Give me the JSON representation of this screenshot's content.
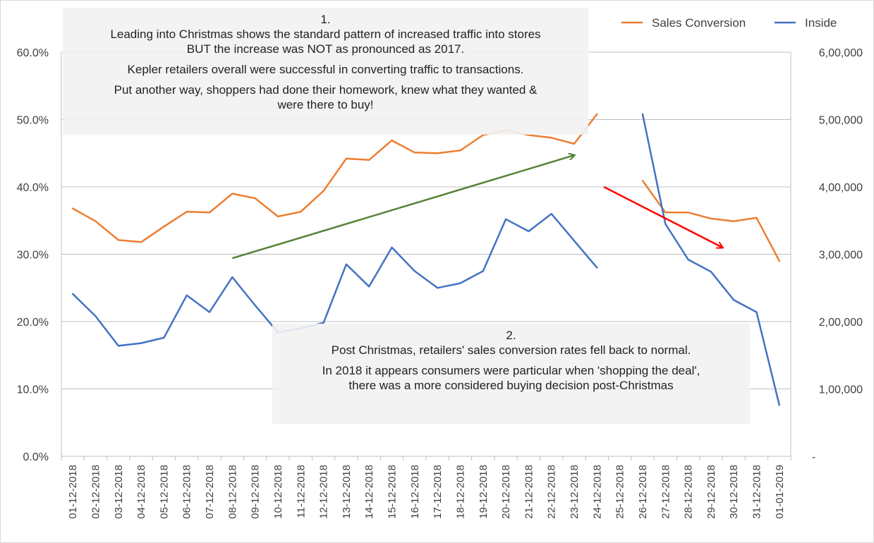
{
  "chart_data": {
    "type": "line",
    "categories": [
      "01-12-2018",
      "02-12-2018",
      "03-12-2018",
      "04-12-2018",
      "05-12-2018",
      "06-12-2018",
      "07-12-2018",
      "08-12-2018",
      "09-12-2018",
      "10-12-2018",
      "11-12-2018",
      "12-12-2018",
      "13-12-2018",
      "14-12-2018",
      "15-12-2018",
      "16-12-2018",
      "17-12-2018",
      "18-12-2018",
      "19-12-2018",
      "20-12-2018",
      "21-12-2018",
      "22-12-2018",
      "23-12-2018",
      "24-12-2018",
      "25-12-2018",
      "26-12-2018",
      "27-12-2018",
      "28-12-2018",
      "29-12-2018",
      "30-12-2018",
      "31-12-2018",
      "01-01-2019"
    ],
    "series": [
      {
        "name": "Sales Conversion",
        "axis": "left",
        "color": "#ED7D31",
        "values": [
          36.8,
          34.9,
          32.1,
          31.8,
          34.1,
          36.3,
          36.2,
          39.0,
          38.3,
          35.6,
          36.3,
          39.4,
          44.2,
          44.0,
          46.9,
          45.1,
          45.0,
          45.4,
          47.7,
          48.4,
          47.7,
          47.3,
          46.4,
          50.8,
          null,
          40.9,
          36.2,
          36.2,
          35.3,
          34.9,
          35.4,
          29.0
        ]
      },
      {
        "name": "Inside",
        "axis": "right",
        "color": "#4472C4",
        "values": [
          241000,
          208000,
          164000,
          168000,
          176000,
          239000,
          214000,
          266000,
          224000,
          184000,
          190000,
          198000,
          285000,
          252000,
          310000,
          275000,
          250000,
          257000,
          275000,
          352000,
          334000,
          360000,
          320000,
          280000,
          null,
          508000,
          345000,
          292000,
          274000,
          232000,
          214000,
          76000
        ]
      }
    ],
    "left_axis": {
      "ylim": [
        0,
        60
      ],
      "ticks": [
        "0.0%",
        "10.0%",
        "20.0%",
        "30.0%",
        "40.0%",
        "50.0%",
        "60.0%"
      ]
    },
    "right_axis": {
      "ylim": [
        0,
        600000
      ],
      "ticks": [
        "-",
        "1,00,000",
        "2,00,000",
        "3,00,000",
        "4,00,000",
        "5,00,000",
        "6,00,000"
      ]
    },
    "grid": true,
    "legend": {
      "position": "top-right",
      "entries": [
        "Sales Conversion",
        "Inside"
      ]
    },
    "annotations": [
      {
        "id": "green-arrow",
        "color": "#548235",
        "from": {
          "x_index": 7,
          "y_pct": 29.4
        },
        "to": {
          "x_index": 22,
          "y_pct": 44.7
        }
      },
      {
        "id": "red-arrow",
        "color": "#FF0000",
        "from": {
          "x_index": 23.3,
          "y_pct": 40.0
        },
        "to": {
          "x_index": 28.5,
          "y_pct": 31.0
        }
      }
    ]
  },
  "notes": {
    "note1": {
      "number": "1.",
      "line1": "Leading into Christmas shows the standard pattern of increased traffic into stores",
      "line2": "BUT the increase was NOT as pronounced as  2017.",
      "line3": "Kepler retailers overall were successful in converting traffic to transactions.",
      "line4": "Put another way, shoppers had done their homework, knew what they wanted &",
      "line5": "were there to buy!"
    },
    "note2": {
      "number": "2.",
      "line1": "Post Christmas, retailers' sales conversion rates fell back to normal.",
      "line2": "In 2018 it appears consumers were particular when 'shopping the deal',",
      "line3": "there was a more considered buying decision post-Christmas"
    }
  }
}
